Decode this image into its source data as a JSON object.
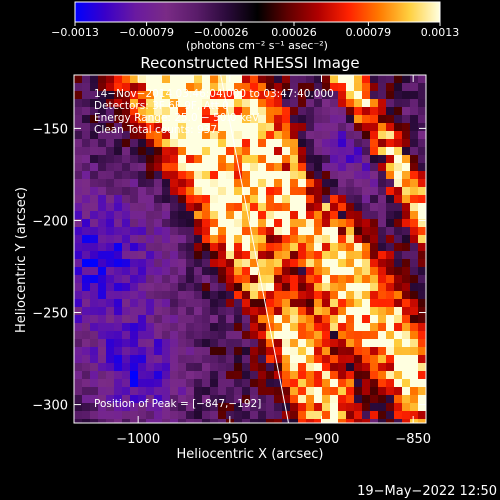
{
  "colorbar": {
    "ticks": [
      "−0.0013",
      "−0.00079",
      "−0.00026",
      "0.00026",
      "0.00079",
      "0.0013"
    ],
    "tick_values": [
      -0.0013,
      -0.00079,
      -0.00026,
      0.00026,
      0.00079,
      0.0013
    ],
    "range": [
      -0.0013,
      0.0013
    ],
    "unit_label": "(photons cm⁻² s⁻¹ asec⁻²)",
    "colormap": [
      "#0000ff",
      "#3a00c8",
      "#6a1aa0",
      "#7a2b86",
      "#5a1c6a",
      "#2a0a3a",
      "#000000",
      "#600000",
      "#b00000",
      "#ff2200",
      "#ff7a00",
      "#ffd040",
      "#ffffe0"
    ]
  },
  "chart_data": {
    "type": "heatmap",
    "title": "Reconstructed RHESSI Image",
    "xlabel": "Heliocentric X (arcsec)",
    "ylabel": "Heliocentric Y (arcsec)",
    "xlim": [
      -1035,
      -843
    ],
    "ylim": [
      -310,
      -121
    ],
    "x_ticks": [
      -1000,
      -950,
      -900,
      -850
    ],
    "x_tick_labels": [
      "−1000",
      "−950",
      "−900",
      "−850"
    ],
    "y_ticks": [
      -150,
      -200,
      -250,
      -300
    ],
    "y_tick_labels": [
      "−150",
      "−200",
      "−250",
      "−300"
    ],
    "limb_line": [
      [
        -955,
        -121
      ],
      [
        -918,
        -310
      ]
    ],
    "peak_position": [
      -847,
      -192
    ],
    "annotations": [
      "14−Nov−2014 03:46:04.000 to 03:47:40.000",
      "Detectors: 3F 6F 9F, Att 0",
      "Energy Range: 25.0 − 50.0 keV",
      "Clean     Total counts: 937."
    ],
    "peak_label": "Position of Peak = [−847,−192]",
    "grid": false
  },
  "footer": {
    "timestamp": "19−May−2022 12:50"
  }
}
